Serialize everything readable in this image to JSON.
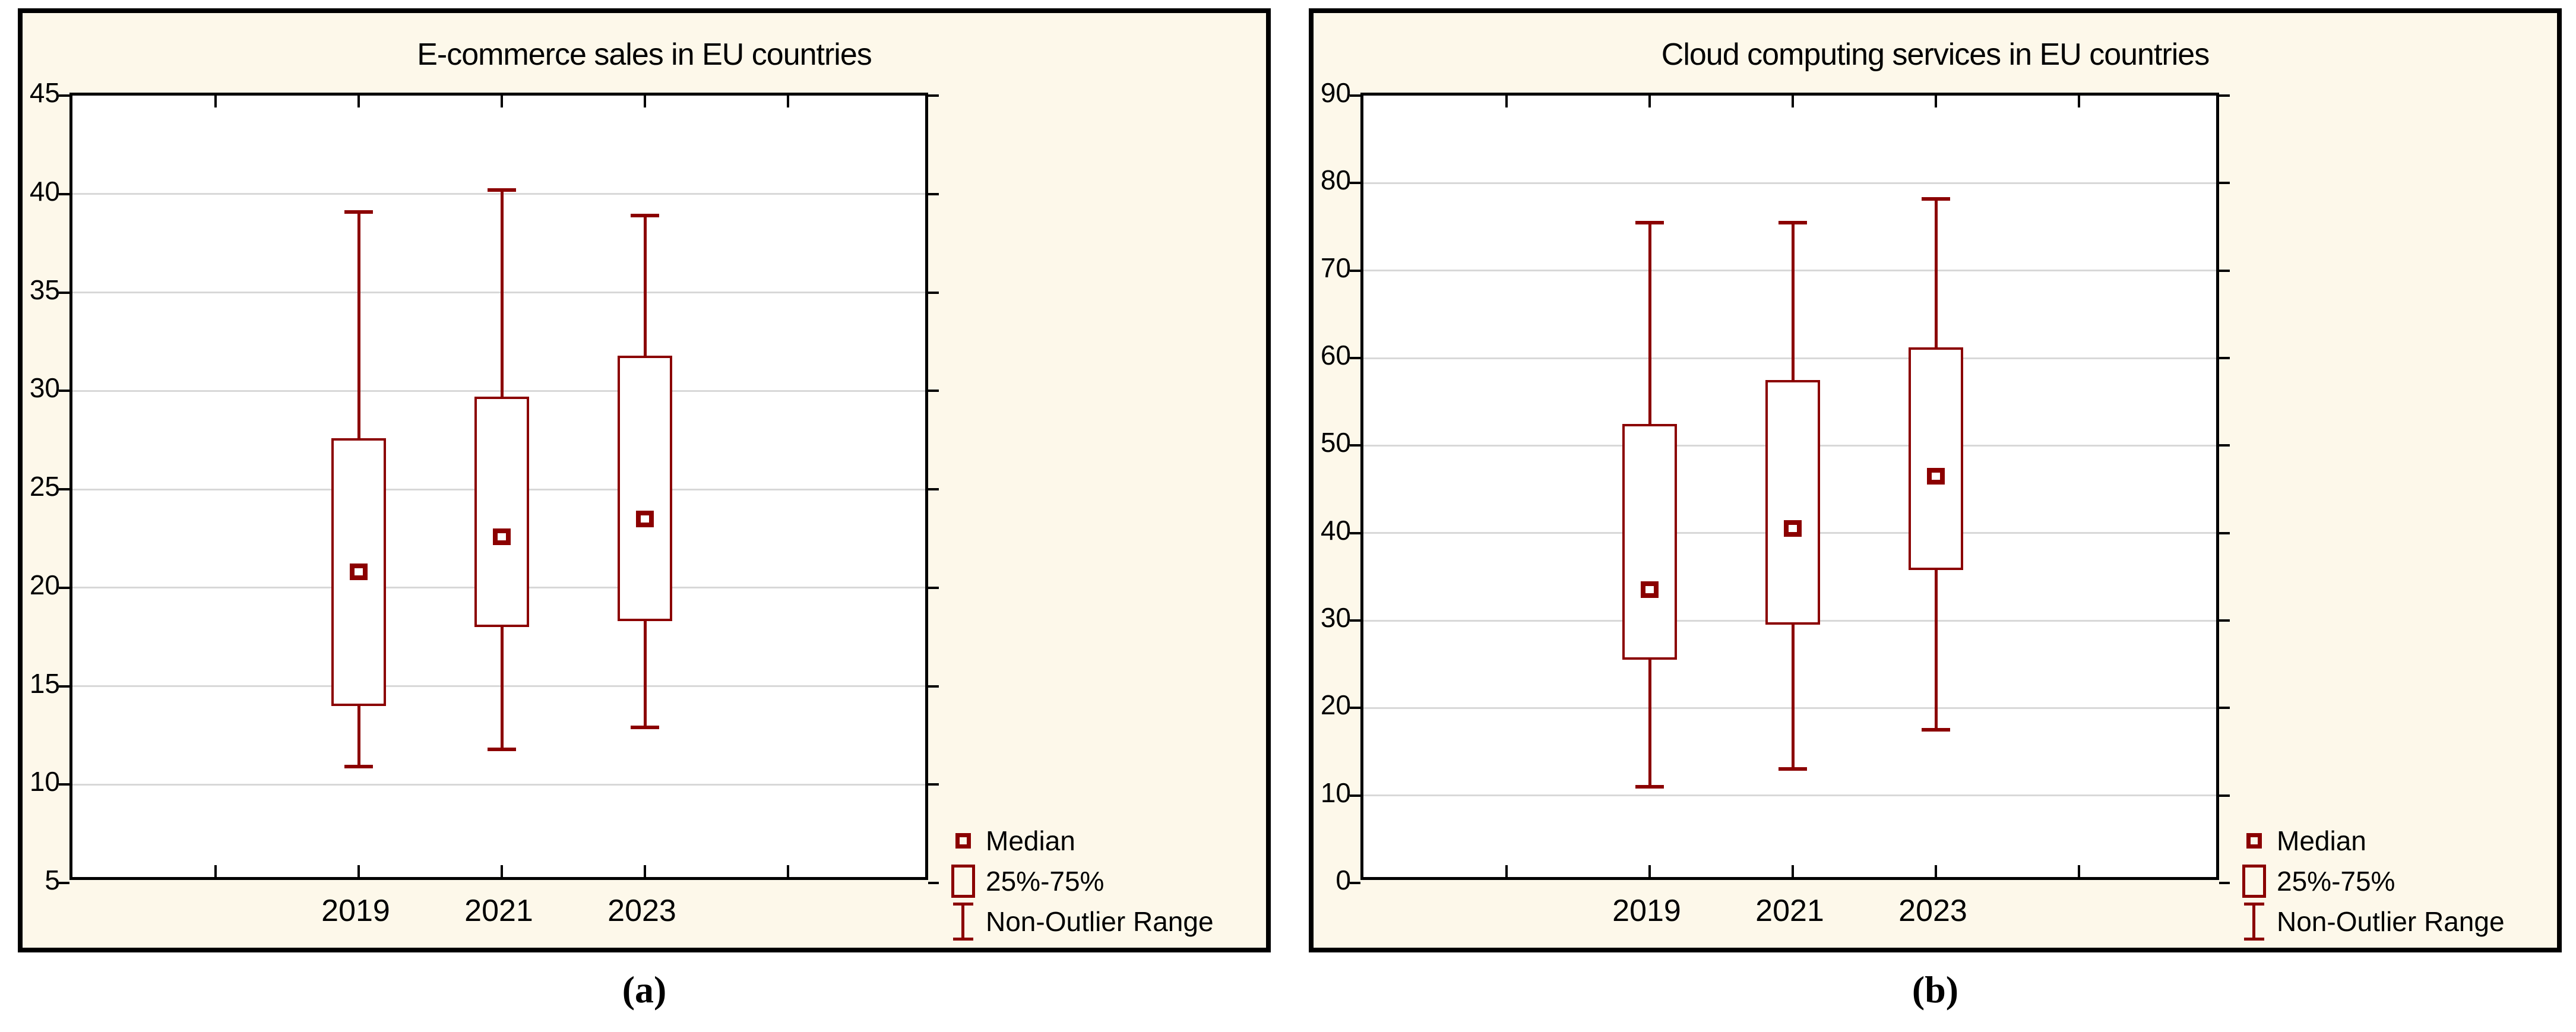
{
  "colors": {
    "series": "#8B0000",
    "panel_background": "#FDF8EA",
    "plot_background": "#FFFFFF",
    "gridline": "#D8D8D8",
    "frame": "#000000",
    "text": "#000000"
  },
  "legend": {
    "items": [
      {
        "label": "Median",
        "icon": "median-marker-icon"
      },
      {
        "label": "25%-75%",
        "icon": "iqr-box-icon"
      },
      {
        "label": "Non-Outlier Range",
        "icon": "whisker-range-icon"
      }
    ]
  },
  "chart_data": [
    {
      "type": "boxplot",
      "panel": "a",
      "title": "E-commerce sales in EU countries",
      "caption": "(a)",
      "categories": [
        "2019",
        "2021",
        "2023"
      ],
      "ylim": [
        5,
        45
      ],
      "ytick_step": 5,
      "ytick_labels": [
        "45",
        "40",
        "35",
        "30",
        "25",
        "20",
        "15",
        "10",
        "5"
      ],
      "grid": "horizontal-light-gray",
      "legend_position": "bottom-right-outside-plot",
      "series": [
        {
          "category": "2019",
          "non_outlier_min": 10.9,
          "q1": 14.0,
          "median": 20.8,
          "q3": 27.6,
          "non_outlier_max": 39.1
        },
        {
          "category": "2021",
          "non_outlier_min": 11.8,
          "q1": 18.0,
          "median": 22.6,
          "q3": 29.7,
          "non_outlier_max": 40.2
        },
        {
          "category": "2023",
          "non_outlier_min": 12.9,
          "q1": 18.3,
          "median": 23.5,
          "q3": 31.8,
          "non_outlier_max": 38.9
        }
      ]
    },
    {
      "type": "boxplot",
      "panel": "b",
      "title": "Cloud computing services in EU countries",
      "caption": "(b)",
      "categories": [
        "2019",
        "2021",
        "2023"
      ],
      "ylim": [
        0,
        90
      ],
      "ytick_step": 10,
      "ytick_labels": [
        "90",
        "80",
        "70",
        "60",
        "50",
        "40",
        "30",
        "20",
        "10",
        "0"
      ],
      "grid": "horizontal-light-gray",
      "legend_position": "bottom-right-outside-plot",
      "series": [
        {
          "category": "2019",
          "non_outlier_min": 11.0,
          "q1": 25.5,
          "median": 33.5,
          "q3": 52.5,
          "non_outlier_max": 75.5
        },
        {
          "category": "2021",
          "non_outlier_min": 13.0,
          "q1": 29.5,
          "median": 40.5,
          "q3": 57.5,
          "non_outlier_max": 75.5
        },
        {
          "category": "2023",
          "non_outlier_min": 17.5,
          "q1": 35.8,
          "median": 46.5,
          "q3": 61.2,
          "non_outlier_max": 78.2
        }
      ]
    }
  ]
}
